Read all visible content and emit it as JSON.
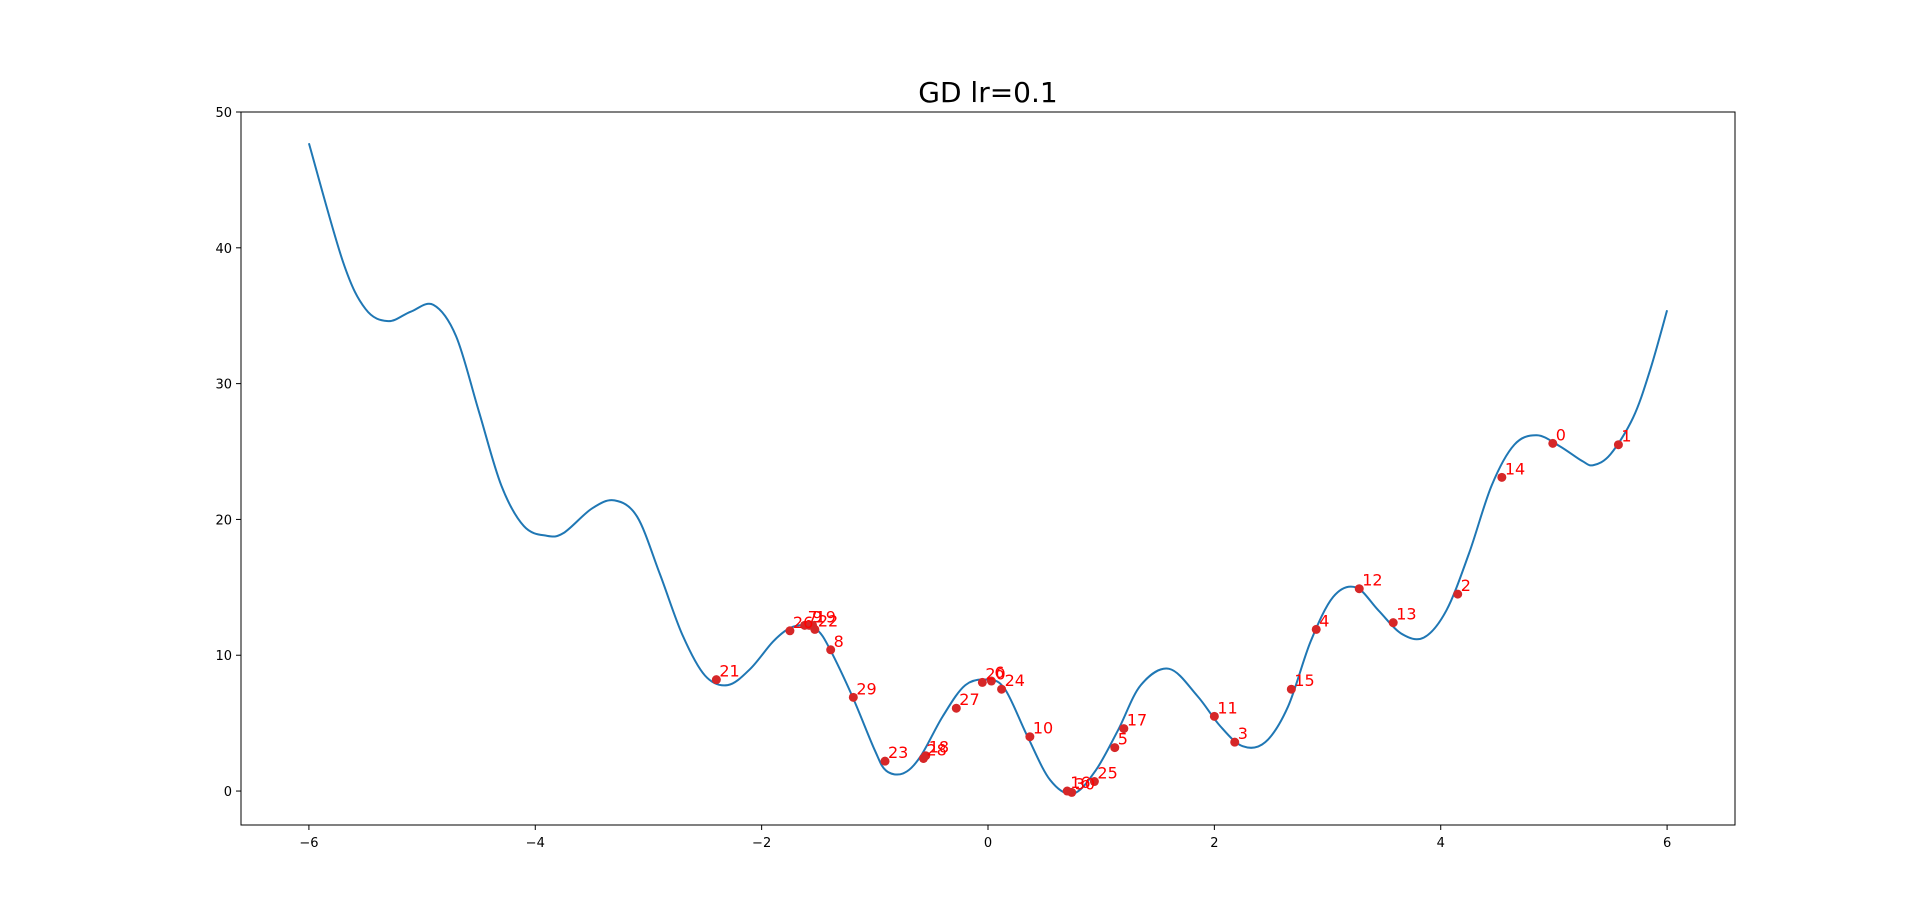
{
  "chart_data": {
    "type": "line",
    "title": "GD lr=0.1",
    "xlabel": "",
    "ylabel": "",
    "xlim": [
      -6.6,
      6.6
    ],
    "ylim": [
      -2.5,
      50
    ],
    "xticks": [
      -6,
      -4,
      -2,
      0,
      2,
      4,
      6
    ],
    "yticks": [
      0,
      10,
      20,
      30,
      40,
      50
    ],
    "grid": false,
    "legend": "none",
    "curve": {
      "color": "#1f77b4",
      "x": [
        -6.0,
        -5.7,
        -5.5,
        -5.3,
        -5.1,
        -4.9,
        -4.7,
        -4.5,
        -4.3,
        -4.1,
        -3.9,
        -3.75,
        -3.5,
        -3.3,
        -3.1,
        -2.9,
        -2.7,
        -2.5,
        -2.3,
        -2.1,
        -1.9,
        -1.75,
        -1.6,
        -1.5,
        -1.4,
        -1.2,
        -1.0,
        -0.9,
        -0.75,
        -0.6,
        -0.4,
        -0.2,
        0.0,
        0.15,
        0.35,
        0.55,
        0.75,
        0.95,
        1.15,
        1.35,
        1.6,
        1.85,
        2.05,
        2.25,
        2.45,
        2.65,
        2.85,
        3.05,
        3.25,
        3.45,
        3.65,
        3.85,
        4.05,
        4.25,
        4.45,
        4.65,
        4.85,
        5.05,
        5.25,
        5.35,
        5.5,
        5.7,
        5.85,
        6.0
      ],
      "y": [
        47.7,
        39.0,
        35.5,
        34.6,
        35.3,
        35.8,
        33.5,
        28.0,
        22.5,
        19.5,
        18.8,
        19.0,
        20.8,
        21.4,
        20.2,
        16.0,
        11.5,
        8.5,
        7.8,
        9.0,
        11.0,
        12.0,
        12.2,
        11.8,
        10.5,
        7.0,
        3.0,
        1.5,
        1.3,
        2.5,
        5.5,
        7.8,
        8.2,
        7.5,
        4.0,
        0.8,
        -0.2,
        1.5,
        4.5,
        7.8,
        9.0,
        7.0,
        4.8,
        3.3,
        3.6,
        6.2,
        11.0,
        14.3,
        15.0,
        13.3,
        11.6,
        11.3,
        13.3,
        17.5,
        22.5,
        25.5,
        26.2,
        25.4,
        24.3,
        24.0,
        24.8,
        27.5,
        31.0,
        35.4
      ]
    },
    "points": {
      "color": "#d62728",
      "label_color": "#ff0000",
      "items": [
        {
          "label": "0",
          "x": 4.99,
          "y": 25.6
        },
        {
          "label": "1",
          "x": 5.57,
          "y": 25.5
        },
        {
          "label": "2",
          "x": 4.15,
          "y": 14.5
        },
        {
          "label": "3",
          "x": 2.18,
          "y": 3.6
        },
        {
          "label": "4",
          "x": 2.9,
          "y": 11.9
        },
        {
          "label": "5",
          "x": 1.12,
          "y": 3.2
        },
        {
          "label": "6",
          "x": 0.03,
          "y": 8.1
        },
        {
          "label": "7",
          "x": -1.62,
          "y": 12.2
        },
        {
          "label": "8",
          "x": -1.39,
          "y": 10.4
        },
        {
          "label": "9",
          "x": -1.58,
          "y": 12.2
        },
        {
          "label": "10",
          "x": 0.37,
          "y": 4.0
        },
        {
          "label": "11",
          "x": 2.0,
          "y": 5.5
        },
        {
          "label": "12",
          "x": 3.28,
          "y": 14.9
        },
        {
          "label": "13",
          "x": 3.58,
          "y": 12.4
        },
        {
          "label": "14",
          "x": 4.54,
          "y": 23.1
        },
        {
          "label": "15",
          "x": 2.68,
          "y": 7.5
        },
        {
          "label": "16",
          "x": 0.7,
          "y": 0.0
        },
        {
          "label": "17",
          "x": 1.2,
          "y": 4.6
        },
        {
          "label": "18",
          "x": -0.55,
          "y": 2.6
        },
        {
          "label": "19",
          "x": -1.55,
          "y": 12.2
        },
        {
          "label": "20",
          "x": -0.05,
          "y": 8.0
        },
        {
          "label": "21",
          "x": -2.4,
          "y": 8.2
        },
        {
          "label": "22",
          "x": -1.53,
          "y": 11.9
        },
        {
          "label": "23",
          "x": -0.91,
          "y": 2.2
        },
        {
          "label": "24",
          "x": 0.12,
          "y": 7.5
        },
        {
          "label": "25",
          "x": 0.94,
          "y": 0.7
        },
        {
          "label": "26",
          "x": -1.75,
          "y": 11.8
        },
        {
          "label": "27",
          "x": -0.28,
          "y": 6.1
        },
        {
          "label": "28",
          "x": -0.57,
          "y": 2.4
        },
        {
          "label": "29",
          "x": -1.19,
          "y": 6.9
        },
        {
          "label": "30",
          "x": 0.74,
          "y": -0.1
        }
      ]
    }
  }
}
